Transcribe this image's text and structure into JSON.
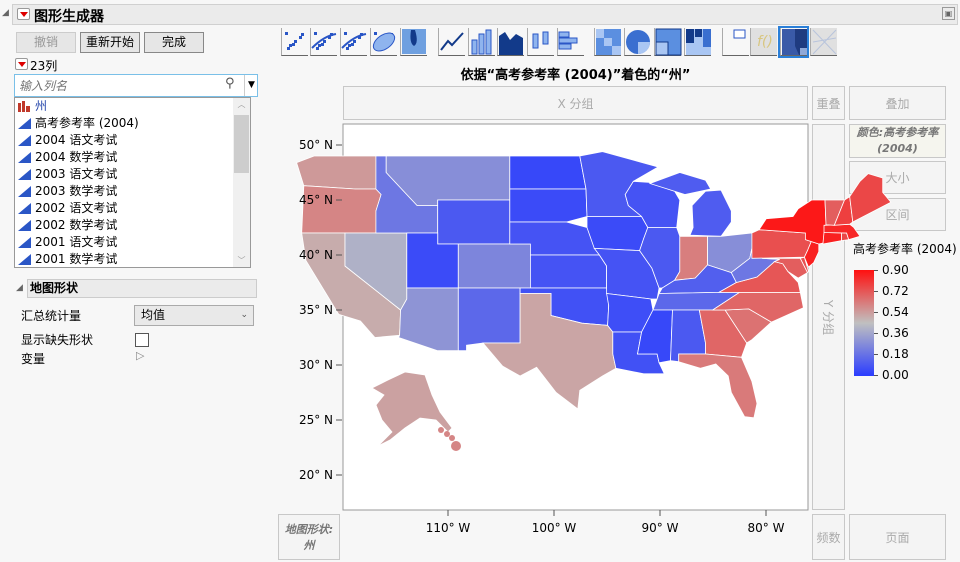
{
  "header": {
    "title": "图形生成器"
  },
  "buttons": {
    "undo": "撤销",
    "restart": "重新开始",
    "done": "完成"
  },
  "columns": {
    "count_label": "23列",
    "search_placeholder": "输入列名",
    "items": [
      {
        "label": "州",
        "type": "nominal"
      },
      {
        "label": "高考参考率 (2004)"
      },
      {
        "label": "2004 语文考试"
      },
      {
        "label": "2004 数学考试"
      },
      {
        "label": "2003 语文考试"
      },
      {
        "label": "2003 数学考试"
      },
      {
        "label": "2002 语文考试"
      },
      {
        "label": "2002 数学考试"
      },
      {
        "label": "2001 语文考试"
      },
      {
        "label": "2001 数学考试"
      }
    ]
  },
  "map_panel": {
    "title": "地图形状",
    "summary_label": "汇总统计量",
    "summary_value": "均值",
    "missing_label": "显示缺失形状",
    "variables_label": "变量"
  },
  "graph": {
    "title": "依据“高考参考率 (2004)”着色的“州”",
    "zones": {
      "x_group": "X 分组",
      "overlap": "重叠",
      "overlay": "叠加",
      "color": "颜色:高考参考率 (2004)",
      "size": "大小",
      "interval": "区间",
      "y_group": "Y 分组",
      "map_shape": "地图形状: 州",
      "freq": "频数",
      "page": "页面"
    },
    "y_ticks": [
      "50° N",
      "45° N",
      "40° N",
      "35° N",
      "30° N",
      "25° N",
      "20° N"
    ],
    "x_ticks": [
      "110° W",
      "100° W",
      "90° W",
      "80° W"
    ]
  },
  "legend": {
    "title": "高考参考率 (2004)",
    "ticks": [
      "0.90",
      "0.72",
      "0.54",
      "0.36",
      "0.18",
      "0.00"
    ],
    "low_color": "#2a3cff",
    "mid_color": "#c0c0c0",
    "high_color": "#ff1010",
    "range": [
      0,
      0.9
    ]
  },
  "map_values": {
    "WA": 0.55,
    "OR": 0.6,
    "CA": 0.5,
    "NV": 0.4,
    "ID": 0.2,
    "MT": 0.28,
    "WY": 0.1,
    "UT": 0.05,
    "CO": 0.25,
    "AZ": 0.3,
    "NM": 0.15,
    "ND": 0.04,
    "SD": 0.05,
    "NE": 0.08,
    "KS": 0.08,
    "OK": 0.07,
    "TX": 0.52,
    "MN": 0.1,
    "IA": 0.05,
    "MO": 0.08,
    "AR": 0.06,
    "LA": 0.07,
    "WI": 0.08,
    "IL": 0.1,
    "MS": 0.04,
    "MI": 0.11,
    "IN": 0.62,
    "OH": 0.28,
    "KY": 0.12,
    "TN": 0.15,
    "AL": 0.1,
    "GA": 0.68,
    "FL": 0.63,
    "SC": 0.65,
    "NC": 0.68,
    "VA": 0.72,
    "WV": 0.2,
    "PA": 0.74,
    "NJ": 0.86,
    "DE": 0.73,
    "MD": 0.7,
    "NY": 0.88,
    "CT": 0.86,
    "RI": 0.76,
    "MA": 0.84,
    "VT": 0.7,
    "NH": 0.78,
    "ME": 0.76,
    "AK": 0.53,
    "HI": 0.6
  }
}
